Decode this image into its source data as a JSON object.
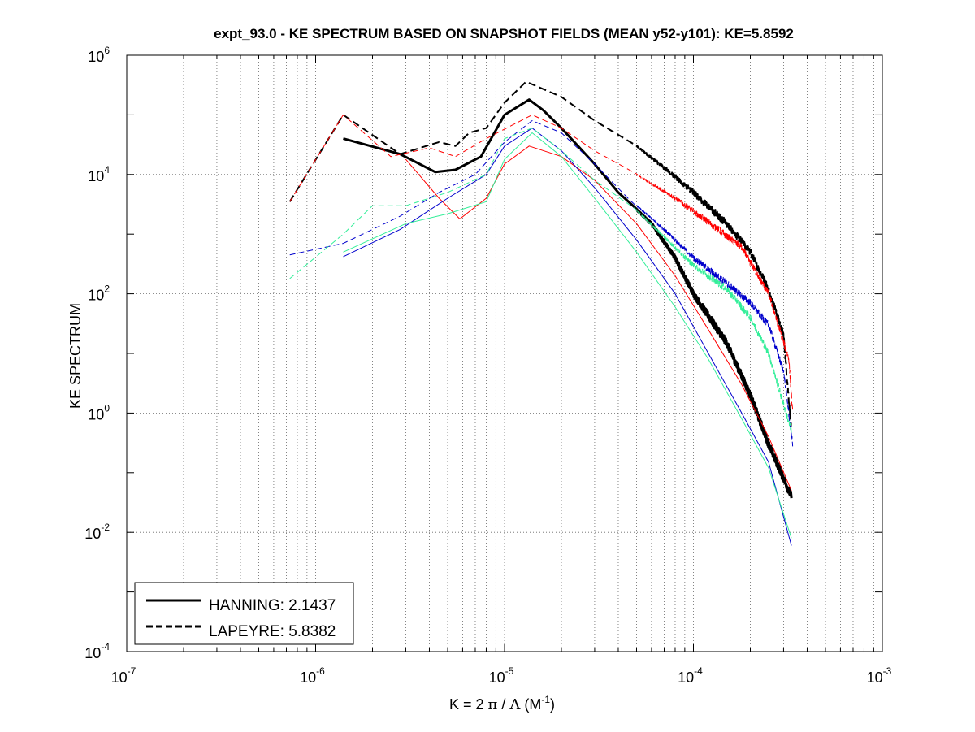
{
  "chart_data": {
    "type": "line",
    "title": "expt_93.0 - KE SPECTRUM BASED ON SNAPSHOT FIELDS (MEAN y52-y101): KE=5.8592",
    "xlabel": {
      "prefix": "K = 2 ",
      "pi": "π",
      "mid": " / ",
      "lambda": "Λ",
      "unit_open": "  (M",
      "unit_exp": "-1",
      "unit_close": ")"
    },
    "ylabel": "KE SPECTRUM",
    "x_scale": "log",
    "y_scale": "log",
    "xlim": [
      1e-07,
      0.001
    ],
    "ylim": [
      0.0001,
      1000000.0
    ],
    "grid": true,
    "legend_position": "bottom-left",
    "x_ticks": [
      {
        "value": 1e-07,
        "base": "10",
        "exp": "-7"
      },
      {
        "value": 1e-06,
        "base": "10",
        "exp": "-6"
      },
      {
        "value": 1e-05,
        "base": "10",
        "exp": "-5"
      },
      {
        "value": 0.0001,
        "base": "10",
        "exp": "-4"
      },
      {
        "value": 0.001,
        "base": "10",
        "exp": "-3"
      }
    ],
    "y_ticks": [
      {
        "value": 0.0001,
        "base": "10",
        "exp": "-4"
      },
      {
        "value": 0.01,
        "base": "10",
        "exp": "-2"
      },
      {
        "value": 1,
        "base": "10",
        "exp": "0"
      },
      {
        "value": 100.0,
        "base": "10",
        "exp": "2"
      },
      {
        "value": 10000.0,
        "base": "10",
        "exp": "4"
      },
      {
        "value": 1000000.0,
        "base": "10",
        "exp": "6"
      }
    ],
    "legend": [
      {
        "label": "HANNING: 2.1437",
        "color": "#000000",
        "dash": "solid"
      },
      {
        "label": "LAPEYRE: 5.8382",
        "color": "#000000",
        "dash": "dashed"
      }
    ],
    "series": [
      {
        "color": "#000000",
        "width": 2,
        "dash": "dashed",
        "noisy": true,
        "points": [
          [
            7.3e-07,
            3500
          ],
          [
            1.4e-06,
            100000
          ],
          [
            2.8e-06,
            22000
          ],
          [
            4.5e-06,
            35000
          ],
          [
            5.5e-06,
            30000
          ],
          [
            6.5e-06,
            50000
          ],
          [
            8e-06,
            60000
          ],
          [
            1e-05,
            160000
          ],
          [
            1.3e-05,
            360000
          ],
          [
            2e-05,
            200000
          ],
          [
            3e-05,
            80000
          ],
          [
            5e-05,
            30000
          ],
          [
            7e-05,
            13000
          ],
          [
            0.0001,
            5000
          ],
          [
            0.00015,
            1500
          ],
          [
            0.0002,
            500
          ],
          [
            0.00025,
            120
          ],
          [
            0.0003,
            20
          ],
          [
            0.00033,
            0.5
          ]
        ]
      },
      {
        "color": "#000000",
        "width": 3,
        "dash": "solid",
        "noisy": true,
        "points": [
          [
            1.4e-06,
            40000
          ],
          [
            2.8e-06,
            22000
          ],
          [
            4.3e-06,
            11000
          ],
          [
            5.5e-06,
            12000
          ],
          [
            7.5e-06,
            20000
          ],
          [
            1e-05,
            100000
          ],
          [
            1.35e-05,
            180000
          ],
          [
            1.6e-05,
            120000
          ],
          [
            2e-05,
            60000
          ],
          [
            3e-05,
            15000
          ],
          [
            4e-05,
            5000
          ],
          [
            6e-05,
            1500
          ],
          [
            8e-05,
            400
          ],
          [
            0.0001,
            100
          ],
          [
            0.00015,
            15
          ],
          [
            0.0002,
            2
          ],
          [
            0.00025,
            0.3
          ],
          [
            0.00033,
            0.04
          ]
        ]
      },
      {
        "color": "#ff0000",
        "width": 1,
        "dash": "dashed",
        "noisy": true,
        "points": [
          [
            7.3e-07,
            3500
          ],
          [
            1.4e-06,
            100000
          ],
          [
            2.5e-06,
            20000
          ],
          [
            4e-06,
            28000
          ],
          [
            5.5e-06,
            20000
          ],
          [
            8e-06,
            40000
          ],
          [
            1.4e-05,
            100000
          ],
          [
            2e-05,
            60000
          ],
          [
            3e-05,
            25000
          ],
          [
            5e-05,
            10000
          ],
          [
            8e-05,
            4000
          ],
          [
            0.00012,
            1600
          ],
          [
            0.00018,
            600
          ],
          [
            0.00025,
            100
          ],
          [
            0.00032,
            8
          ],
          [
            0.000335,
            1
          ]
        ]
      },
      {
        "color": "#ff0000",
        "width": 1,
        "dash": "solid",
        "noisy": false,
        "points": [
          [
            3e-06,
            18000
          ],
          [
            4.5e-06,
            4000
          ],
          [
            5.8e-06,
            1800
          ],
          [
            8e-06,
            4000
          ],
          [
            1e-05,
            15000
          ],
          [
            1.35e-05,
            30000
          ],
          [
            2e-05,
            20000
          ],
          [
            3e-05,
            8000
          ],
          [
            5e-05,
            1500
          ],
          [
            8e-05,
            200
          ],
          [
            0.00012,
            25
          ],
          [
            0.00018,
            3
          ],
          [
            0.00025,
            0.4
          ],
          [
            0.00033,
            0.05
          ]
        ]
      },
      {
        "color": "#0000cc",
        "width": 1,
        "dash": "dashed",
        "noisy": true,
        "points": [
          [
            7.3e-07,
            450
          ],
          [
            1.4e-06,
            700
          ],
          [
            2.8e-06,
            2000
          ],
          [
            4.5e-06,
            5000
          ],
          [
            7e-06,
            10000
          ],
          [
            1e-05,
            35000
          ],
          [
            1.4e-05,
            80000
          ],
          [
            2e-05,
            50000
          ],
          [
            3e-05,
            15000
          ],
          [
            4.5e-05,
            4000
          ],
          [
            7e-05,
            1200
          ],
          [
            0.0001,
            400
          ],
          [
            0.00015,
            150
          ],
          [
            0.0002,
            70
          ],
          [
            0.00025,
            30
          ],
          [
            0.0003,
            5
          ],
          [
            0.000335,
            0.3
          ]
        ]
      },
      {
        "color": "#0000cc",
        "width": 1,
        "dash": "solid",
        "noisy": false,
        "points": [
          [
            1.4e-06,
            420
          ],
          [
            2.8e-06,
            1200
          ],
          [
            5e-06,
            4000
          ],
          [
            8e-06,
            10000
          ],
          [
            1e-05,
            30000
          ],
          [
            1.4e-05,
            60000
          ],
          [
            2e-05,
            25000
          ],
          [
            3e-05,
            6000
          ],
          [
            5e-05,
            800
          ],
          [
            8e-05,
            100
          ],
          [
            0.00012,
            10
          ],
          [
            0.00018,
            1
          ],
          [
            0.00025,
            0.15
          ],
          [
            0.00033,
            0.006
          ]
        ]
      },
      {
        "color": "#33ee99",
        "width": 1,
        "dash": "dashed",
        "noisy": true,
        "points": [
          [
            7.3e-07,
            180
          ],
          [
            1.4e-06,
            1000
          ],
          [
            2e-06,
            3000
          ],
          [
            3e-06,
            3000
          ],
          [
            5e-06,
            5000
          ],
          [
            8e-06,
            10000
          ],
          [
            1e-05,
            40000
          ],
          [
            1.4e-05,
            60000
          ],
          [
            2e-05,
            25000
          ],
          [
            3e-05,
            8000
          ],
          [
            5e-05,
            2500
          ],
          [
            8e-05,
            600
          ],
          [
            0.0001,
            300
          ],
          [
            0.00015,
            120
          ],
          [
            0.0002,
            40
          ],
          [
            0.00025,
            10
          ],
          [
            0.00033,
            0.5
          ]
        ]
      },
      {
        "color": "#33ee99",
        "width": 1,
        "dash": "solid",
        "noisy": false,
        "points": [
          [
            1.4e-06,
            500
          ],
          [
            3e-06,
            1500
          ],
          [
            5e-06,
            2200
          ],
          [
            8e-06,
            3500
          ],
          [
            1e-05,
            18000
          ],
          [
            1.4e-05,
            50000
          ],
          [
            2e-05,
            20000
          ],
          [
            3e-05,
            4000
          ],
          [
            5e-05,
            500
          ],
          [
            8e-05,
            60
          ],
          [
            0.00012,
            8
          ],
          [
            0.00018,
            0.8
          ],
          [
            0.00025,
            0.12
          ],
          [
            0.00033,
            0.008
          ]
        ]
      }
    ]
  }
}
